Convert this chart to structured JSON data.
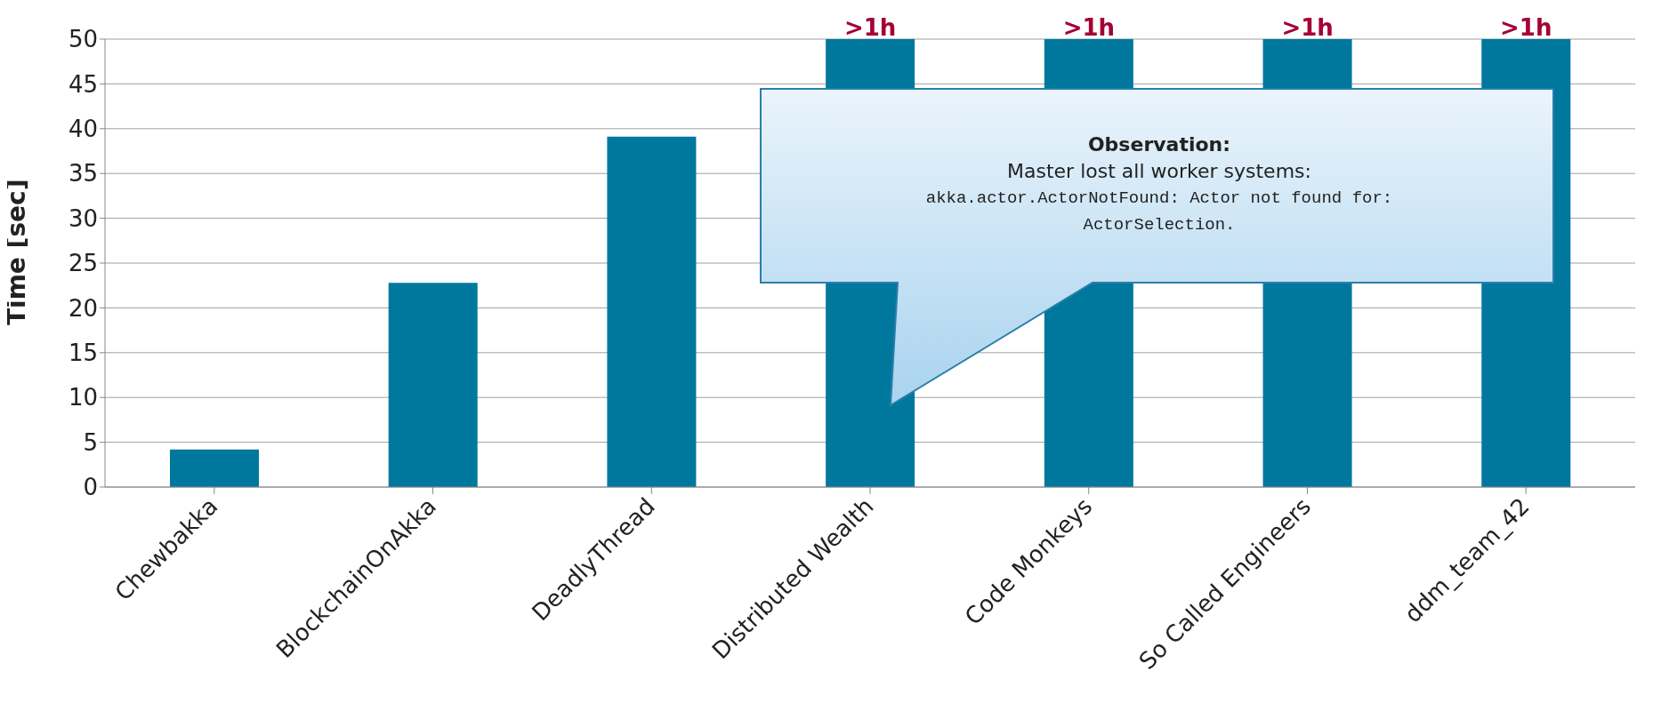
{
  "chart_data": {
    "type": "bar",
    "ylabel": "Time [sec]",
    "categories": [
      "Chewbakka",
      "BlockchainOnAkka",
      "DeadlyThread",
      "Distributed Wealth",
      "Code Monkeys",
      "So Called Engineers",
      "ddm_team_42"
    ],
    "values": [
      4.2,
      22.8,
      39.1,
      50,
      50,
      50,
      50
    ],
    "value_labels": [
      null,
      null,
      null,
      ">1h",
      ">1h",
      ">1h",
      ">1h"
    ],
    "color": "#00789e",
    "ylim": [
      0,
      50
    ],
    "yticks": [
      0,
      5,
      10,
      15,
      20,
      25,
      30,
      35,
      40,
      45,
      50
    ],
    "grid": "y",
    "annotations": [
      "Observation:",
      "Master lost all worker systems:",
      "akka.actor.ActorNotFound: Actor not found for: ActorSelection."
    ]
  }
}
